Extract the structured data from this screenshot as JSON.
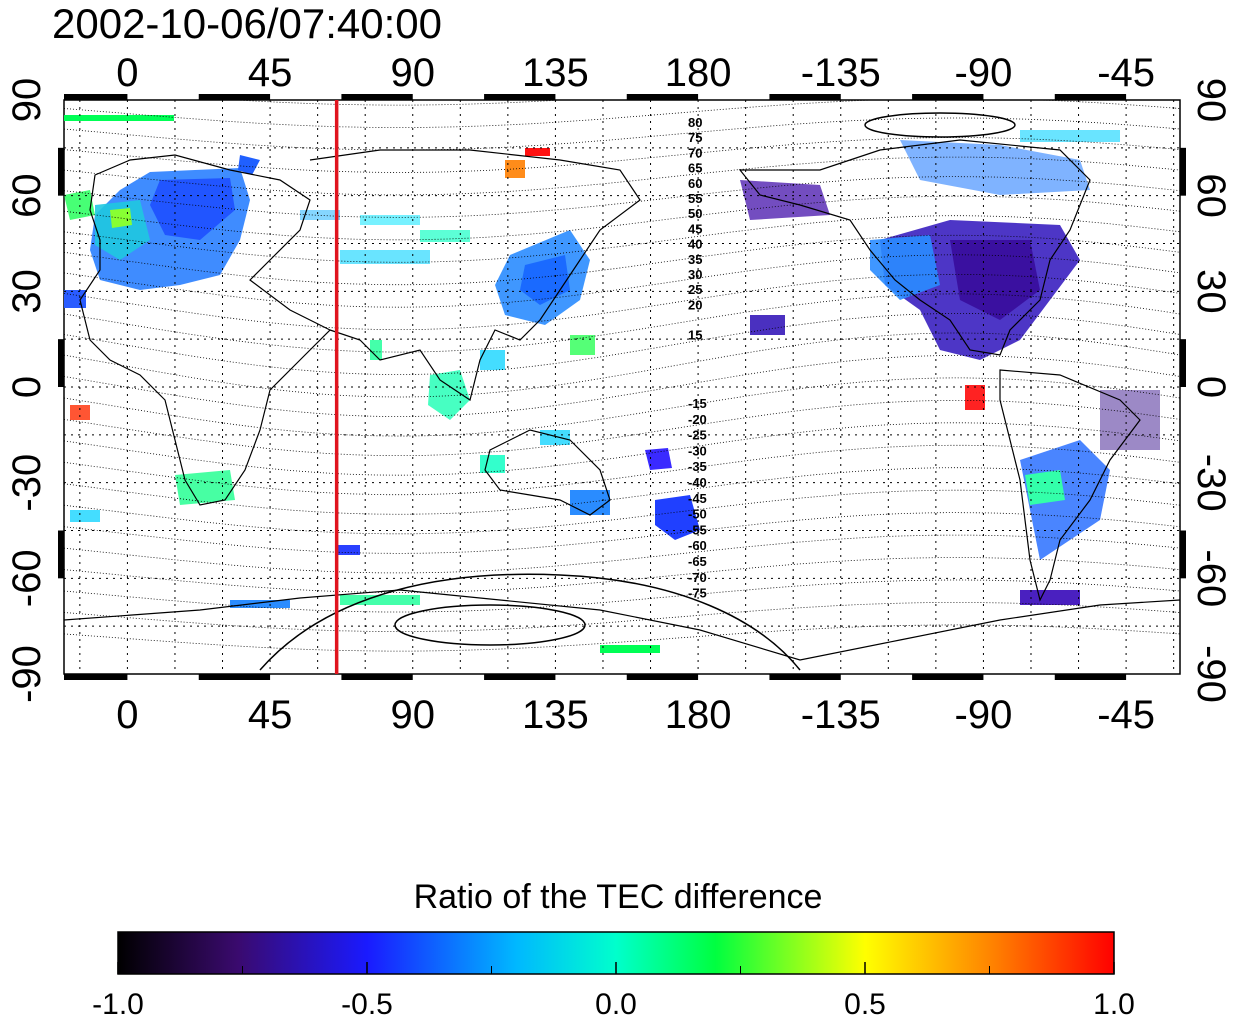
{
  "title": "2002-10-06/07:40:00",
  "map": {
    "lon_ticks": [
      0,
      45,
      90,
      135,
      180,
      -135,
      -90,
      -45
    ],
    "lon_tick_positions": [
      0,
      45,
      90,
      135,
      180,
      225,
      270,
      315
    ],
    "lon_range": [
      -20,
      332
    ],
    "lat_ticks": [
      90,
      60,
      30,
      0,
      -30,
      -60,
      -90
    ],
    "lat_range": [
      -90,
      90
    ],
    "marker_longitude": 66,
    "marker_color": "#e0141e",
    "grid": "dotted",
    "contour_labels_north": [
      "80",
      "75",
      "70",
      "65",
      "60",
      "55",
      "50",
      "45",
      "40",
      "35",
      "30",
      "25",
      "20",
      "15"
    ],
    "contour_labels_south": [
      "-15",
      "-20",
      "-25",
      "-30",
      "-35",
      "-40",
      "-45",
      "-50",
      "-55",
      "-60",
      "-65",
      "-70",
      "-75"
    ]
  },
  "colorbar": {
    "title": "Ratio of the TEC difference",
    "ticks": [
      "-1.0",
      "-0.5",
      "0.0",
      "0.5",
      "1.0"
    ],
    "range": [
      -1.0,
      1.0
    ],
    "colormap": [
      "#000000",
      "#3a0a6e",
      "#1a1aff",
      "#00e0ff",
      "#00ff40",
      "#ffff00",
      "#ff8000",
      "#ff0000"
    ]
  }
}
